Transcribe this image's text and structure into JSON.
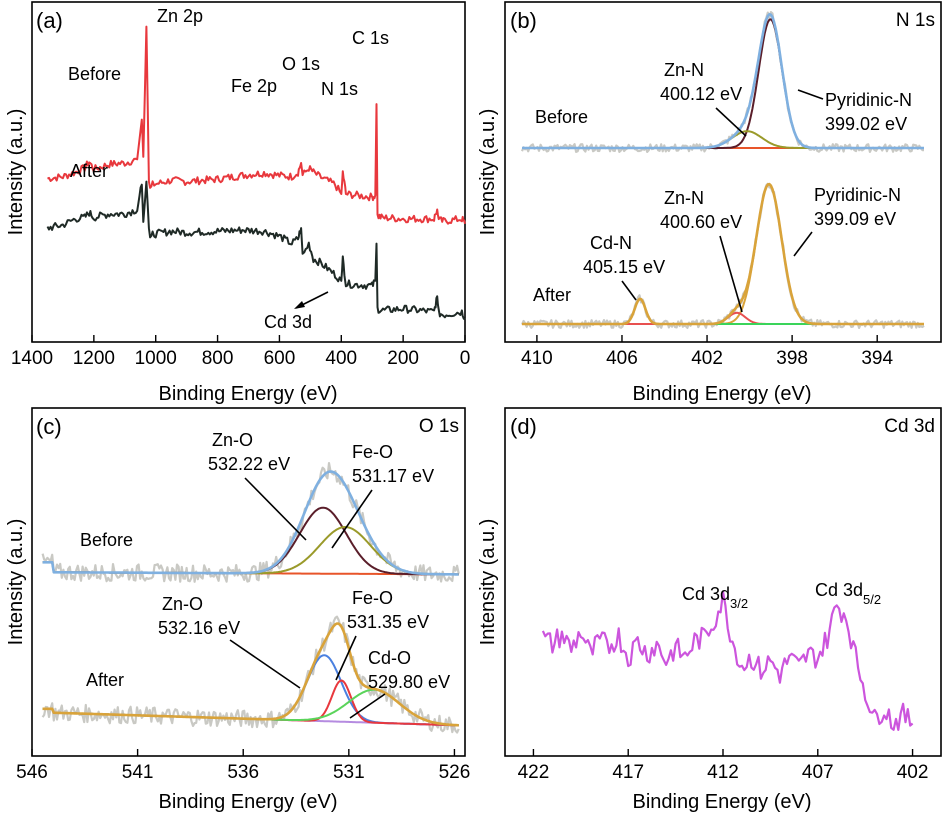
{
  "colors": {
    "before_survey": "#e8383d",
    "after_survey": "#1f2a26",
    "raw": "#c9c9c4",
    "envelope_b": "#7fb0e0",
    "envelope_after": "#d9a33a",
    "baseline_b": "#e8552a",
    "baseline_after": "#b58be0",
    "pyridinic_b": "#5a1e2a",
    "znn_b": "#9a9a2a",
    "znn_a": "#e85050",
    "cdn": "#3ad45a",
    "zno_b": "#5a1e2a",
    "feo_b": "#9a9a2a",
    "zno_a": "#4a80e0",
    "feo_a": "#e8383d",
    "cdo": "#5ad45a",
    "cd3d": "#cc55dd"
  },
  "chart_data": [
    {
      "panel": "(a)",
      "type": "line",
      "title": "",
      "xlabel": "Binding Energy (eV)",
      "ylabel": "Intensity (a.u.)",
      "xlim": [
        1400,
        0
      ],
      "xticks": [
        "1400",
        "1200",
        "1000",
        "800",
        "600",
        "400",
        "200",
        "0"
      ],
      "series": [
        {
          "name": "Before",
          "x": [
            1350,
            1300,
            1260,
            1230,
            1215,
            1200,
            1150,
            1100,
            1060,
            1045,
            1040,
            1030,
            1022,
            1018,
            1010,
            950,
            900,
            800,
            720,
            650,
            600,
            560,
            540,
            530,
            525,
            505,
            490,
            470,
            420,
            400,
            395,
            385,
            300,
            290,
            286,
            283,
            270,
            200,
            100,
            90,
            85,
            70,
            10,
            0
          ],
          "y": [
            1.35,
            1.38,
            1.45,
            1.52,
            1.62,
            1.5,
            1.58,
            1.6,
            1.66,
            2.3,
            1.7,
            3.8,
            1.3,
            1.2,
            1.25,
            1.32,
            1.3,
            1.34,
            1.4,
            1.44,
            1.4,
            1.38,
            1.45,
            1.6,
            1.4,
            1.52,
            1.45,
            1.38,
            1.25,
            1.1,
            1.45,
            1.1,
            1.05,
            1.08,
            2.55,
            0.75,
            0.72,
            0.7,
            0.7,
            0.85,
            0.68,
            0.66,
            0.7,
            0.62
          ]
        },
        {
          "name": "After",
          "x": [
            1350,
            1300,
            1260,
            1230,
            1215,
            1200,
            1150,
            1100,
            1060,
            1045,
            1040,
            1030,
            1022,
            1018,
            1010,
            950,
            900,
            800,
            720,
            650,
            600,
            560,
            540,
            530,
            525,
            505,
            490,
            470,
            420,
            400,
            395,
            385,
            300,
            290,
            286,
            283,
            270,
            200,
            100,
            90,
            85,
            70,
            10,
            0
          ],
          "y": [
            0.55,
            0.6,
            0.7,
            0.72,
            0.8,
            0.72,
            0.78,
            0.78,
            0.85,
            1.25,
            0.65,
            1.3,
            0.55,
            0.4,
            0.45,
            0.5,
            0.48,
            0.5,
            0.52,
            0.5,
            0.42,
            0.3,
            0.38,
            0.55,
            0.1,
            0.3,
            0.05,
            0.0,
            -0.2,
            -0.3,
            0.05,
            -0.35,
            -0.38,
            -0.3,
            0.3,
            -0.75,
            -0.78,
            -0.75,
            -0.8,
            -0.55,
            -0.82,
            -0.85,
            -0.8,
            -0.9
          ]
        }
      ]
    },
    {
      "panel": "(b)",
      "type": "line",
      "title": "N 1s",
      "xlabel": "Binding Energy (eV)",
      "ylabel": "Intensity (a.u.)",
      "xlim": [
        411.5,
        391
      ],
      "xticks": [
        "410",
        "406",
        "402",
        "398",
        "394"
      ],
      "peaks_before": [
        {
          "name": "Pyridinic-N",
          "center": 399.02,
          "height": 2.3,
          "width": 0.55
        },
        {
          "name": "Zn-N",
          "center": 400.12,
          "height": 0.3,
          "width": 0.7
        }
      ],
      "peaks_after": [
        {
          "name": "Pyridinic-N",
          "center": 399.09,
          "height": 2.5,
          "width": 0.6
        },
        {
          "name": "Zn-N",
          "center": 400.6,
          "height": 0.2,
          "width": 0.4
        },
        {
          "name": "Cd-N",
          "center": 405.15,
          "height": 0.45,
          "width": 0.25
        }
      ]
    },
    {
      "panel": "(c)",
      "type": "line",
      "title": "O 1s",
      "xlabel": "Binding Energy (eV)",
      "ylabel": "Intensity (a.u.)",
      "xlim": [
        546,
        525.5
      ],
      "xticks": [
        "546",
        "541",
        "536",
        "531",
        "526"
      ],
      "peaks_before": [
        {
          "name": "Zn-O",
          "center": 532.22,
          "height": 1.2,
          "width": 1.1
        },
        {
          "name": "Fe-O",
          "center": 531.17,
          "height": 0.85,
          "width": 1.2
        }
      ],
      "peaks_after": [
        {
          "name": "Zn-O",
          "center": 532.16,
          "height": 1.2,
          "width": 0.8
        },
        {
          "name": "Fe-O",
          "center": 531.35,
          "height": 0.75,
          "width": 0.45
        },
        {
          "name": "Cd-O",
          "center": 529.8,
          "height": 0.6,
          "width": 1.2
        }
      ]
    },
    {
      "panel": "(d)",
      "type": "line",
      "title": "Cd 3d",
      "xlabel": "Binding Energy (eV)",
      "ylabel": "Intensity (a.u.)",
      "xlim": [
        423.5,
        400.5
      ],
      "xticks": [
        "422",
        "417",
        "412",
        "407",
        "402"
      ],
      "series": [
        {
          "name": "Cd 3d",
          "x": [
            421.5,
            421,
            420.5,
            420,
            419.5,
            419,
            418.5,
            418,
            417.5,
            417,
            416.5,
            416,
            415.5,
            415,
            414.5,
            414,
            413.5,
            413,
            412.5,
            412,
            411.5,
            411,
            410.5,
            410,
            409.5,
            409,
            408.5,
            408,
            407.5,
            407,
            406.5,
            406,
            405.5,
            405,
            404.5,
            404,
            403.5,
            403,
            402.5,
            402
          ],
          "y": [
            0.62,
            0.58,
            0.64,
            0.55,
            0.66,
            0.52,
            0.6,
            0.57,
            0.63,
            0.5,
            0.6,
            0.52,
            0.58,
            0.48,
            0.56,
            0.5,
            0.6,
            0.62,
            0.72,
            0.85,
            0.6,
            0.45,
            0.5,
            0.42,
            0.48,
            0.4,
            0.5,
            0.44,
            0.52,
            0.5,
            0.62,
            0.82,
            0.75,
            0.5,
            0.3,
            0.12,
            0.2,
            0.1,
            0.15,
            0.1
          ]
        }
      ]
    }
  ],
  "panels": {
    "a": {
      "label": "(a)",
      "ann_zn2p": "Zn 2p",
      "ann_fe2p": "Fe 2p",
      "ann_o1s": "O 1s",
      "ann_n1s": "N 1s",
      "ann_c1s": "C 1s",
      "ann_cd3d": "Cd 3d",
      "ann_before": "Before",
      "ann_after": "After"
    },
    "b": {
      "label": "(b)",
      "title": "N 1s",
      "znn_before": "Zn-N",
      "znn_before_val": "400.12 eV",
      "pyr_before": "Pyridinic-N",
      "pyr_before_val": "399.02 eV",
      "before": "Before",
      "znn_after": "Zn-N",
      "znn_after_val": "400.60 eV",
      "pyr_after": "Pyridinic-N",
      "pyr_after_val": "399.09 eV",
      "cdn_after": "Cd-N",
      "cdn_after_val": "405.15 eV",
      "after": "After"
    },
    "c": {
      "label": "(c)",
      "title": "O 1s",
      "zno_before": "Zn-O",
      "zno_before_val": "532.22 eV",
      "feo_before": "Fe-O",
      "feo_before_val": "531.17 eV",
      "before": "Before",
      "zno_after": "Zn-O",
      "zno_after_val": "532.16 eV",
      "feo_after": "Fe-O",
      "feo_after_val": "531.35 eV",
      "cdo_after": "Cd-O",
      "cdo_after_val": "529.80 eV",
      "after": "After"
    },
    "d": {
      "label": "(d)",
      "title": "Cd 3d",
      "ann_32": "Cd 3d",
      "ann_32_sub": "3/2",
      "ann_52": "Cd 3d",
      "ann_52_sub": "5/2"
    }
  }
}
